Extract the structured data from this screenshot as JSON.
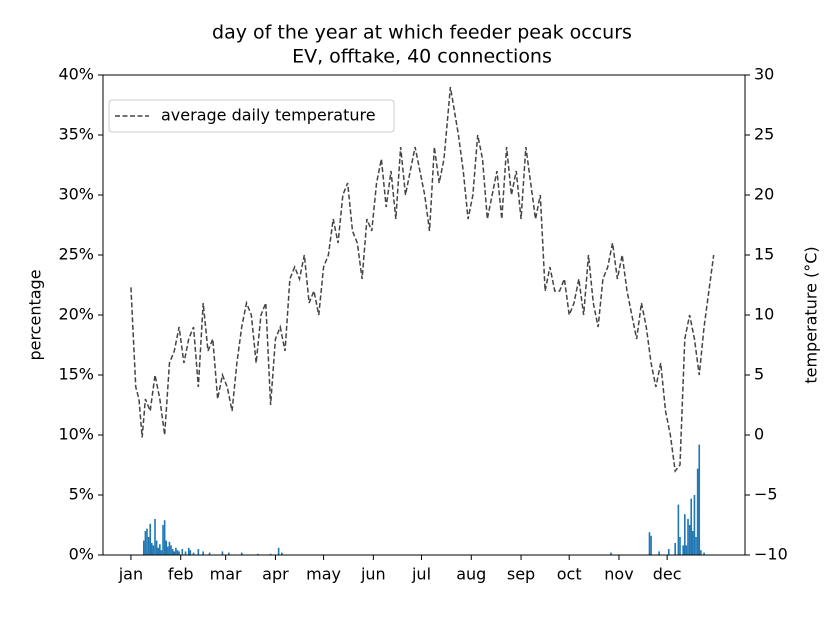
{
  "chart_data": {
    "type": "bar",
    "title": "day of the year at which feeder peak occurs",
    "subtitle": "EV, offtake, 40 connections",
    "y_label": "percentage",
    "y2_label": "temperature (°C)",
    "legend": "upper left",
    "xlim": [
      -16.4,
      383.5
    ],
    "xticks": [
      {
        "value": 1,
        "label": "jan"
      },
      {
        "value": 32,
        "label": "feb"
      },
      {
        "value": 60,
        "label": "mar"
      },
      {
        "value": 91,
        "label": "apr"
      },
      {
        "value": 121,
        "label": "may"
      },
      {
        "value": 152,
        "label": "jun"
      },
      {
        "value": 182,
        "label": "jul"
      },
      {
        "value": 213,
        "label": "aug"
      },
      {
        "value": 244,
        "label": "sep"
      },
      {
        "value": 274,
        "label": "oct"
      },
      {
        "value": 305,
        "label": "nov"
      },
      {
        "value": 335,
        "label": "dec"
      }
    ],
    "ylim": [
      0,
      40
    ],
    "yticks": [
      {
        "value": 0,
        "label": "0%"
      },
      {
        "value": 5,
        "label": "5%"
      },
      {
        "value": 10,
        "label": "10%"
      },
      {
        "value": 15,
        "label": "15%"
      },
      {
        "value": 20,
        "label": "20%"
      },
      {
        "value": 25,
        "label": "25%"
      },
      {
        "value": 30,
        "label": "30%"
      },
      {
        "value": 35,
        "label": "35%"
      },
      {
        "value": 40,
        "label": "40%"
      }
    ],
    "y2lim": [
      -10,
      30
    ],
    "y2ticks": [
      {
        "value": -10,
        "label": "−10"
      },
      {
        "value": -5,
        "label": "−5"
      },
      0,
      5,
      10,
      15,
      20,
      25,
      30
    ],
    "series": [
      {
        "type": "bar",
        "color": "#1f77b4",
        "x": [
          9,
          10,
          11,
          12,
          13,
          14,
          15,
          16,
          17,
          18,
          19,
          20,
          21,
          22,
          23,
          24,
          25,
          26,
          27,
          28,
          29,
          30,
          31,
          33,
          35,
          37,
          38,
          40,
          43,
          46,
          50,
          58,
          62,
          70,
          80,
          88,
          93,
          95,
          300,
          324,
          325,
          330,
          336,
          340,
          342,
          343,
          345,
          346,
          347,
          348,
          349,
          350,
          351,
          352,
          353,
          354,
          355,
          356,
          358
        ],
        "values": [
          1.2,
          2.0,
          2.2,
          1.5,
          2.6,
          1.0,
          0.8,
          3.0,
          1.2,
          0.6,
          0.9,
          0.4,
          2.5,
          2.9,
          1.2,
          0.7,
          1.1,
          0.8,
          0.5,
          0.3,
          0.6,
          0.4,
          0.3,
          0.5,
          0.3,
          0.6,
          0.4,
          0.2,
          0.5,
          0.3,
          0.2,
          0.3,
          0.2,
          0.2,
          0.1,
          0.1,
          0.6,
          0.2,
          0.2,
          1.9,
          1.6,
          0.3,
          0.5,
          1.0,
          4.2,
          1.5,
          0.8,
          3.4,
          0.8,
          3.0,
          2.5,
          4.7,
          2.0,
          5.0,
          1.5,
          7.2,
          9.2,
          0.4,
          0.2
        ]
      },
      {
        "type": "line",
        "name": "average daily temperature",
        "axis": "y2",
        "color": "#444444",
        "dashed": true,
        "x": [
          1,
          4,
          6,
          8,
          10,
          13,
          16,
          19,
          22,
          25,
          28,
          31,
          34,
          37,
          40,
          43,
          46,
          49,
          52,
          55,
          58,
          61,
          64,
          67,
          70,
          73,
          76,
          79,
          82,
          85,
          88,
          91,
          94,
          97,
          100,
          103,
          106,
          109,
          112,
          115,
          118,
          121,
          124,
          127,
          130,
          133,
          136,
          139,
          142,
          145,
          148,
          151,
          154,
          157,
          160,
          163,
          166,
          169,
          172,
          175,
          178,
          181,
          184,
          187,
          190,
          193,
          196,
          200,
          205,
          208,
          211,
          214,
          217,
          220,
          223,
          226,
          229,
          232,
          235,
          238,
          241,
          244,
          247,
          250,
          253,
          256,
          259,
          262,
          265,
          268,
          271,
          274,
          277,
          280,
          283,
          286,
          289,
          292,
          295,
          298,
          301,
          304,
          307,
          310,
          313,
          316,
          319,
          322,
          325,
          328,
          331,
          334,
          337,
          340,
          343,
          346,
          349,
          352,
          355,
          358,
          361,
          364
        ],
        "values": [
          12.3,
          4,
          3,
          -0.2,
          3,
          2,
          5,
          3,
          0,
          6,
          7,
          9,
          6,
          8,
          9,
          4,
          11,
          7,
          8,
          3,
          5,
          4,
          2,
          6,
          9,
          11,
          10,
          6,
          10,
          11,
          2.5,
          8,
          9,
          7,
          13,
          14,
          13,
          15,
          11,
          12,
          10,
          14,
          15,
          18,
          16,
          20,
          21,
          17,
          16,
          13,
          18,
          17,
          21,
          23,
          19,
          22,
          18,
          24,
          20,
          22,
          24,
          22,
          20,
          17,
          24,
          21,
          23,
          29,
          25,
          22,
          18,
          20,
          25,
          23,
          18,
          20,
          22,
          18,
          24,
          20,
          22,
          18,
          24,
          21,
          18,
          20,
          12,
          14,
          12,
          12,
          13,
          10,
          11,
          13,
          10,
          15,
          11,
          9,
          13,
          14,
          16,
          13,
          15,
          12,
          10,
          8,
          11,
          9,
          6,
          4,
          6,
          2,
          0,
          -3,
          -2.5,
          8,
          10,
          8,
          5,
          9,
          12,
          15
        ]
      }
    ]
  }
}
